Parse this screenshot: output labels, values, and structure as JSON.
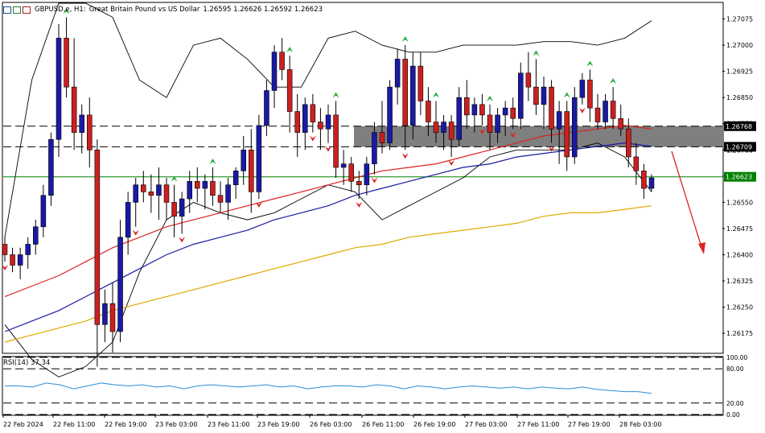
{
  "header": {
    "symbol": "GBPUSD.e, H1:",
    "description": "Great Britain Pound vs US Dollar",
    "ohlc": "1.26595 1.26626 1.26592 1.26623"
  },
  "rsi": {
    "label": "RSI(14) 37.34",
    "levels": [
      "100.00",
      "80.00",
      "20.00",
      "0.00"
    ],
    "values_approx": [
      50,
      50,
      48,
      55,
      52,
      45,
      50,
      55,
      52,
      50,
      52,
      48,
      50,
      45,
      50,
      52,
      50,
      48,
      50,
      52,
      48,
      50,
      45,
      48,
      50,
      50,
      48,
      52,
      50,
      45,
      50,
      48,
      45,
      48,
      50,
      48,
      46,
      48,
      45,
      48,
      46,
      45,
      48,
      44,
      42,
      40,
      40,
      37
    ]
  },
  "chart_data": {
    "type": "candlestick",
    "title": "GBPUSD.e, H1: Great Britain Pound vs US Dollar",
    "price_axis_labels": [
      "1.27075",
      "1.27000",
      "1.26925",
      "1.26850",
      "1.26775",
      "1.26700",
      "1.26625",
      "1.26550",
      "1.26475",
      "1.26400",
      "1.26325",
      "1.26250",
      "1.26175"
    ],
    "time_axis_labels": [
      "22 Feb 2024",
      "22 Feb 11:00",
      "22 Feb 19:00",
      "23 Feb 03:00",
      "23 Feb 11:00",
      "23 Feb 19:00",
      "26 Feb 03:00",
      "26 Feb 11:00",
      "26 Feb 19:00",
      "27 Feb 03:00",
      "27 Feb 11:00",
      "27 Feb 19:00",
      "28 Feb 03:00"
    ],
    "ylim": [
      1.2612,
      1.2712
    ],
    "zone": {
      "high": 1.26768,
      "low": 1.26709
    },
    "zone_labels": [
      "1.26768",
      "1.26709"
    ],
    "current_price": 1.26623,
    "current_price_label": "1.26623",
    "candles": [
      [
        1.2643,
        1.2645,
        1.2638,
        1.264
      ],
      [
        1.264,
        1.2642,
        1.2635,
        1.2637
      ],
      [
        1.2637,
        1.2642,
        1.2633,
        1.264
      ],
      [
        1.264,
        1.2645,
        1.2636,
        1.2643
      ],
      [
        1.2643,
        1.265,
        1.264,
        1.2648
      ],
      [
        1.2648,
        1.266,
        1.2645,
        1.2657
      ],
      [
        1.2657,
        1.2675,
        1.2654,
        1.2673
      ],
      [
        1.2673,
        1.2706,
        1.2668,
        1.2702
      ],
      [
        1.2702,
        1.2708,
        1.2685,
        1.2688
      ],
      [
        1.2688,
        1.2702,
        1.267,
        1.2675
      ],
      [
        1.2675,
        1.2683,
        1.2669,
        1.268
      ],
      [
        1.268,
        1.2685,
        1.2665,
        1.267
      ],
      [
        1.267,
        1.2673,
        1.2608,
        1.262
      ],
      [
        1.262,
        1.263,
        1.2615,
        1.2626
      ],
      [
        1.2626,
        1.2632,
        1.2612,
        1.2618
      ],
      [
        1.2618,
        1.265,
        1.2615,
        1.2645
      ],
      [
        1.2645,
        1.2658,
        1.264,
        1.2655
      ],
      [
        1.2655,
        1.2662,
        1.2648,
        1.266
      ],
      [
        1.266,
        1.2664,
        1.2655,
        1.2658
      ],
      [
        1.2658,
        1.2663,
        1.2652,
        1.2657
      ],
      [
        1.2657,
        1.2665,
        1.265,
        1.266
      ],
      [
        1.266,
        1.2662,
        1.265,
        1.2655
      ],
      [
        1.2655,
        1.266,
        1.2645,
        1.2651
      ],
      [
        1.2651,
        1.2658,
        1.2646,
        1.2656
      ],
      [
        1.2656,
        1.2664,
        1.2652,
        1.2661
      ],
      [
        1.2661,
        1.2665,
        1.2655,
        1.2659
      ],
      [
        1.2659,
        1.2663,
        1.2653,
        1.2661
      ],
      [
        1.2661,
        1.2665,
        1.2654,
        1.2657
      ],
      [
        1.2657,
        1.2661,
        1.2652,
        1.2655
      ],
      [
        1.2655,
        1.2662,
        1.265,
        1.266
      ],
      [
        1.266,
        1.2665,
        1.2656,
        1.2664
      ],
      [
        1.2664,
        1.2674,
        1.266,
        1.267
      ],
      [
        1.267,
        1.2676,
        1.2652,
        1.2658
      ],
      [
        1.2658,
        1.268,
        1.2656,
        1.2677
      ],
      [
        1.2677,
        1.269,
        1.2674,
        1.2687
      ],
      [
        1.2687,
        1.27,
        1.2682,
        1.2698
      ],
      [
        1.2698,
        1.2702,
        1.269,
        1.2693
      ],
      [
        1.2693,
        1.2697,
        1.2675,
        1.2681
      ],
      [
        1.2681,
        1.2686,
        1.2668,
        1.2675
      ],
      [
        1.2675,
        1.2685,
        1.267,
        1.2683
      ],
      [
        1.2683,
        1.2686,
        1.2675,
        1.2678
      ],
      [
        1.2678,
        1.2682,
        1.267,
        1.2676
      ],
      [
        1.2676,
        1.2683,
        1.2672,
        1.268
      ],
      [
        1.268,
        1.2684,
        1.2662,
        1.2665
      ],
      [
        1.2665,
        1.267,
        1.266,
        1.2666
      ],
      [
        1.2666,
        1.2668,
        1.2658,
        1.2661
      ],
      [
        1.2661,
        1.2664,
        1.2656,
        1.266
      ],
      [
        1.266,
        1.2668,
        1.2657,
        1.2666
      ],
      [
        1.2666,
        1.2678,
        1.2663,
        1.2675
      ],
      [
        1.2675,
        1.2684,
        1.2669,
        1.2672
      ],
      [
        1.2672,
        1.269,
        1.267,
        1.2688
      ],
      [
        1.2688,
        1.2699,
        1.2683,
        1.2696
      ],
      [
        1.2696,
        1.27,
        1.267,
        1.2677
      ],
      [
        1.2677,
        1.2698,
        1.2673,
        1.2694
      ],
      [
        1.2694,
        1.2698,
        1.268,
        1.2684
      ],
      [
        1.2684,
        1.2688,
        1.2674,
        1.2678
      ],
      [
        1.2678,
        1.2684,
        1.2672,
        1.2675
      ],
      [
        1.2675,
        1.268,
        1.267,
        1.2678
      ],
      [
        1.2678,
        1.268,
        1.2668,
        1.2673
      ],
      [
        1.2673,
        1.2688,
        1.2671,
        1.2685
      ],
      [
        1.2685,
        1.269,
        1.2676,
        1.268
      ],
      [
        1.268,
        1.2685,
        1.2675,
        1.2683
      ],
      [
        1.2683,
        1.2686,
        1.2677,
        1.268
      ],
      [
        1.268,
        1.2683,
        1.267,
        1.2675
      ],
      [
        1.2675,
        1.2682,
        1.2672,
        1.268
      ],
      [
        1.268,
        1.2684,
        1.2674,
        1.2682
      ],
      [
        1.2682,
        1.2685,
        1.2676,
        1.2679
      ],
      [
        1.2679,
        1.2695,
        1.2676,
        1.2692
      ],
      [
        1.2692,
        1.2698,
        1.2684,
        1.2688
      ],
      [
        1.2688,
        1.2696,
        1.268,
        1.2683
      ],
      [
        1.2683,
        1.2691,
        1.2676,
        1.2688
      ],
      [
        1.2688,
        1.269,
        1.2672,
        1.2676
      ],
      [
        1.2676,
        1.2684,
        1.2666,
        1.2681
      ],
      [
        1.2681,
        1.2684,
        1.2664,
        1.2668
      ],
      [
        1.2668,
        1.2688,
        1.2666,
        1.2685
      ],
      [
        1.2685,
        1.2692,
        1.2683,
        1.269
      ],
      [
        1.269,
        1.2693,
        1.2678,
        1.2682
      ],
      [
        1.2682,
        1.2686,
        1.2676,
        1.2678
      ],
      [
        1.2678,
        1.2686,
        1.2676,
        1.2684
      ],
      [
        1.2684,
        1.2688,
        1.2676,
        1.2679
      ],
      [
        1.2679,
        1.2683,
        1.2674,
        1.2676
      ],
      [
        1.2676,
        1.2679,
        1.2665,
        1.2668
      ],
      [
        1.2668,
        1.2672,
        1.266,
        1.2664
      ],
      [
        1.2664,
        1.2666,
        1.2656,
        1.2659
      ],
      [
        1.2659,
        1.2663,
        1.2658,
        1.2662
      ]
    ],
    "ma_red_approx": [
      1.2628,
      1.2631,
      1.2634,
      1.2638,
      1.2642,
      1.2645,
      1.2648,
      1.265,
      1.2652,
      1.2654,
      1.2656,
      1.2658,
      1.266,
      1.2662,
      1.2664,
      1.2665,
      1.2666,
      1.2668,
      1.267,
      1.2672,
      1.2674,
      1.2675,
      1.2676,
      1.2677,
      1.2676
    ],
    "ma_blue_approx": [
      1.2618,
      1.2621,
      1.2624,
      1.2628,
      1.2632,
      1.2636,
      1.264,
      1.2643,
      1.2645,
      1.2647,
      1.265,
      1.2652,
      1.2654,
      1.2657,
      1.2659,
      1.2661,
      1.2663,
      1.2665,
      1.2666,
      1.2668,
      1.2669,
      1.267,
      1.2671,
      1.2672,
      1.2671
    ],
    "ma_orange_approx": [
      1.2615,
      1.2617,
      1.2619,
      1.2621,
      1.2624,
      1.2626,
      1.2628,
      1.263,
      1.2632,
      1.2634,
      1.2636,
      1.2638,
      1.264,
      1.2642,
      1.2643,
      1.2645,
      1.2646,
      1.2647,
      1.2648,
      1.2649,
      1.2651,
      1.2652,
      1.2652,
      1.2653,
      1.2654
    ],
    "bb_upper_approx": [
      1.2645,
      1.269,
      1.2712,
      1.2712,
      1.2708,
      1.269,
      1.2685,
      1.27,
      1.2702,
      1.2696,
      1.2688,
      1.2688,
      1.2702,
      1.2704,
      1.27,
      1.2698,
      1.2698,
      1.27,
      1.27,
      1.27,
      1.2701,
      1.2701,
      1.27,
      1.2702,
      1.2707
    ],
    "bb_lower_approx": [
      1.262,
      1.261,
      1.2605,
      1.2608,
      1.2615,
      1.2635,
      1.265,
      1.2655,
      1.2652,
      1.265,
      1.2652,
      1.2656,
      1.266,
      1.2658,
      1.265,
      1.2654,
      1.2658,
      1.2662,
      1.2668,
      1.267,
      1.267,
      1.267,
      1.2672,
      1.2668,
      1.2658
    ]
  }
}
